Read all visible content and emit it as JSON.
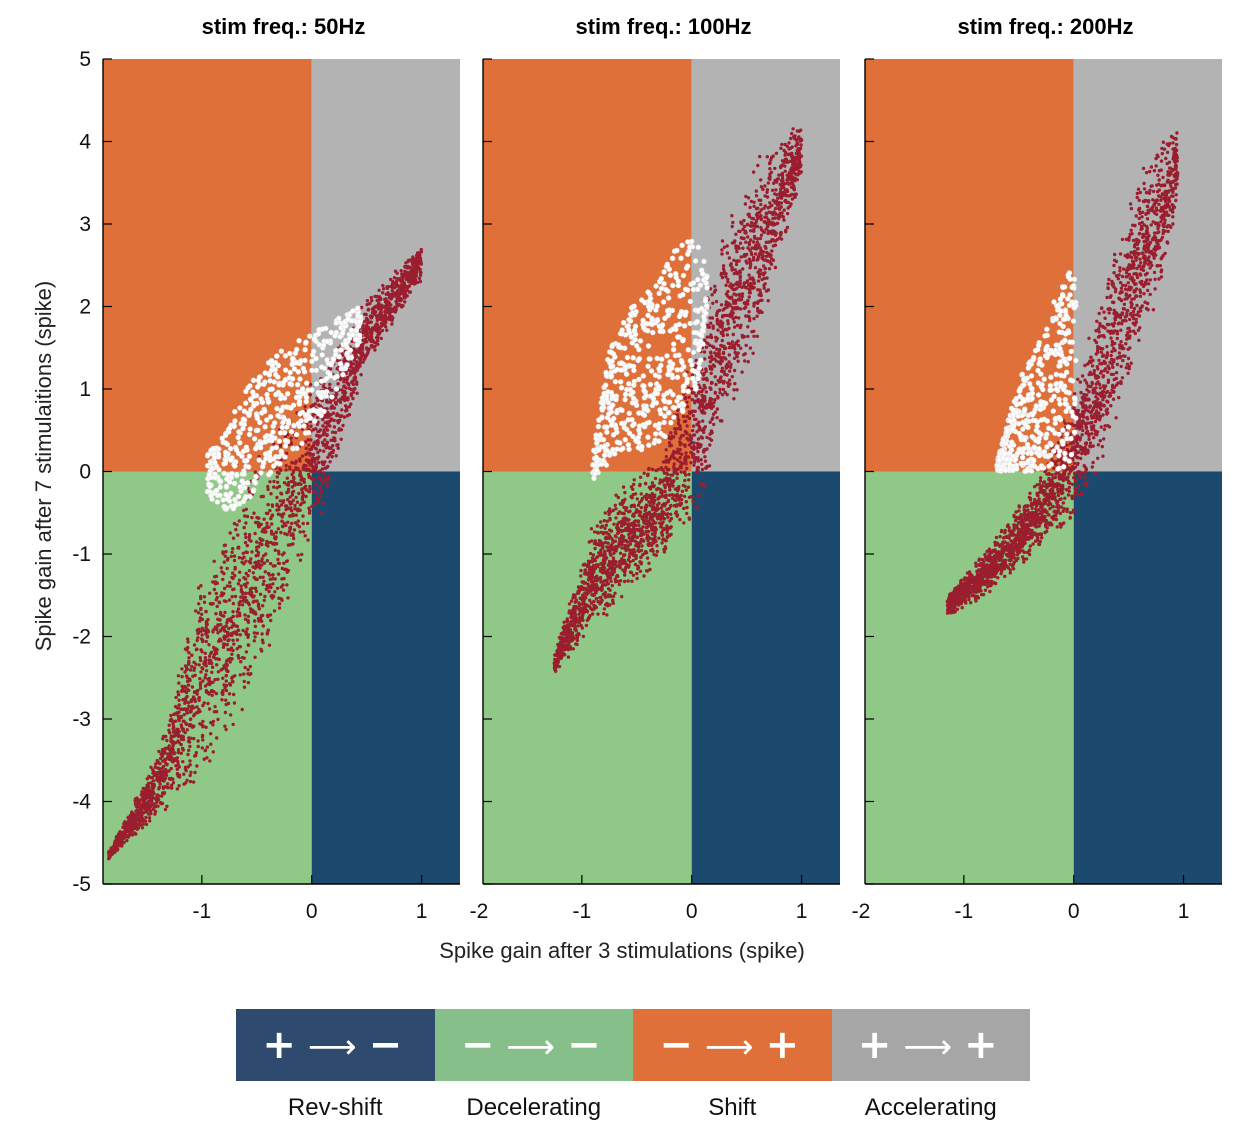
{
  "chart_data": {
    "type": "scatter",
    "ylabel": "Spike gain after 7 stimulaitions (spike)",
    "xlabel": "Spike gain after 3 stimulations (spike)",
    "y_ticks": [
      "5",
      "4",
      "3",
      "2",
      "1",
      "0",
      "-1",
      "-2",
      "-3",
      "-4",
      "-5"
    ],
    "quadrant_colors": {
      "rev_shift": "#1b4a6e",
      "decelerating": "#90c987",
      "shift": "#e0703a",
      "accelerating": "#b3b3b3"
    },
    "point_colors": {
      "red": "#9b1e2e",
      "white": "#ffffff"
    },
    "panels": [
      {
        "title": "stim freq.: 50Hz",
        "xlim": [
          -1.9,
          1.35
        ],
        "ylim": [
          -5,
          5
        ],
        "x_ticks": [
          "-1",
          "0",
          "1"
        ],
        "red_cloud": {
          "band": [
            [
              -1.85,
              -4.7,
              -4.6
            ],
            [
              -1.4,
              -4.2,
              -3.4
            ],
            [
              -1.0,
              -3.8,
              -1.2
            ],
            [
              -0.6,
              -3.0,
              0.0
            ],
            [
              -0.2,
              -1.5,
              0.8
            ],
            [
              0.1,
              -0.5,
              1.3
            ],
            [
              0.5,
              1.3,
              2.1
            ],
            [
              0.8,
              1.9,
              2.5
            ],
            [
              1.0,
              2.3,
              2.75
            ]
          ],
          "count": 2600
        },
        "white_cloud": {
          "band": [
            [
              -0.95,
              -0.3,
              0.2
            ],
            [
              -0.75,
              -0.5,
              0.6
            ],
            [
              -0.55,
              -0.3,
              1.1
            ],
            [
              -0.35,
              0.0,
              1.4
            ],
            [
              -0.1,
              0.3,
              1.6
            ],
            [
              0.15,
              0.8,
              1.8
            ],
            [
              0.45,
              1.6,
              2.0
            ]
          ],
          "count": 520
        }
      },
      {
        "title": "stim freq.: 100Hz",
        "xlim": [
          -1.9,
          1.35
        ],
        "ylim": [
          -5,
          5
        ],
        "x_ticks": [
          "-2",
          "-1",
          "0",
          "1"
        ],
        "red_cloud": {
          "band": [
            [
              -1.25,
              -2.45,
              -2.2
            ],
            [
              -0.9,
              -2.0,
              -0.6
            ],
            [
              -0.6,
              -1.5,
              -0.1
            ],
            [
              -0.3,
              -1.2,
              0.2
            ],
            [
              0.0,
              -0.7,
              1.5
            ],
            [
              0.3,
              0.5,
              3.0
            ],
            [
              0.6,
              1.5,
              3.8
            ],
            [
              0.85,
              2.8,
              4.2
            ],
            [
              1.0,
              3.5,
              4.2
            ]
          ],
          "count": 2400
        },
        "white_cloud": {
          "band": [
            [
              -0.9,
              -0.1,
              0.2
            ],
            [
              -0.75,
              0.1,
              1.5
            ],
            [
              -0.55,
              0.2,
              2.0
            ],
            [
              -0.35,
              0.3,
              2.3
            ],
            [
              -0.15,
              0.5,
              2.8
            ],
            [
              0.05,
              1.0,
              2.8
            ],
            [
              0.15,
              2.0,
              2.5
            ]
          ],
          "count": 500
        }
      },
      {
        "title": "stim freq.: 200Hz",
        "xlim": [
          -1.9,
          1.35
        ],
        "ylim": [
          -5,
          5
        ],
        "x_ticks": [
          "-2",
          "-1",
          "0",
          "1"
        ],
        "red_cloud": {
          "band": [
            [
              -1.15,
              -1.75,
              -1.5
            ],
            [
              -0.9,
              -1.6,
              -1.1
            ],
            [
              -0.6,
              -1.3,
              -0.6
            ],
            [
              -0.3,
              -0.9,
              0.0
            ],
            [
              0.0,
              -0.6,
              1.0
            ],
            [
              0.3,
              0.2,
              2.5
            ],
            [
              0.6,
              1.5,
              3.6
            ],
            [
              0.8,
              2.2,
              4.1
            ],
            [
              0.95,
              3.3,
              4.3
            ]
          ],
          "count": 2300
        },
        "white_cloud": {
          "band": [
            [
              -0.7,
              0.0,
              0.1
            ],
            [
              -0.5,
              0.0,
              1.1
            ],
            [
              -0.3,
              0.0,
              1.6
            ],
            [
              -0.15,
              0.0,
              2.2
            ],
            [
              0.0,
              0.0,
              2.5
            ],
            [
              0.02,
              0.5,
              2.1
            ]
          ],
          "count": 460
        }
      }
    ]
  },
  "legend": {
    "items": [
      {
        "label": "Rev-shift",
        "from": "+",
        "to": "−",
        "color": "#2e4a6e"
      },
      {
        "label": "Decelerating",
        "from": "−",
        "to": "−",
        "color": "#86bf89"
      },
      {
        "label": "Shift",
        "from": "−",
        "to": "+",
        "color": "#e0703a"
      },
      {
        "label": "Accelerating",
        "from": "+",
        "to": "+",
        "color": "#a6a6a6"
      }
    ],
    "arrow": "⟶"
  }
}
